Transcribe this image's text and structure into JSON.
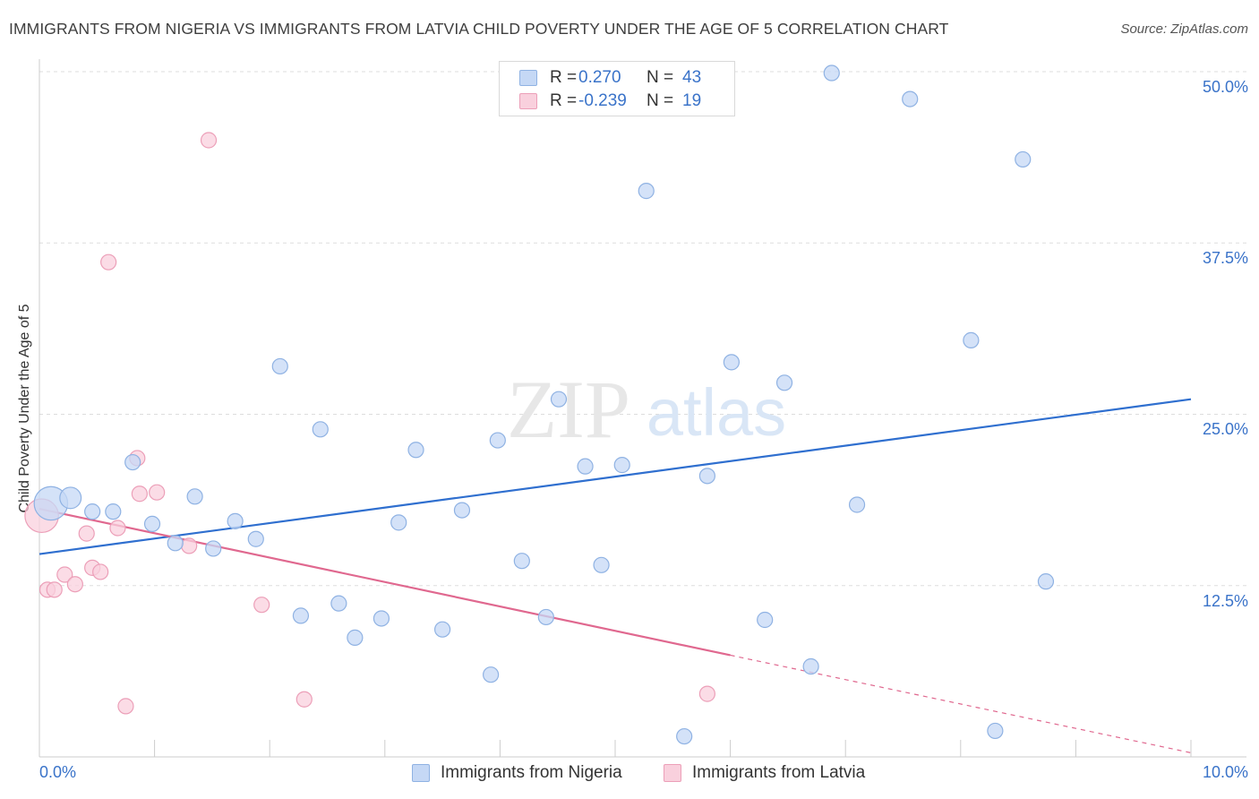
{
  "title": "IMMIGRANTS FROM NIGERIA VS IMMIGRANTS FROM LATVIA CHILD POVERTY UNDER THE AGE OF 5 CORRELATION CHART",
  "source": "Source: ZipAtlas.com",
  "watermark": {
    "zip": "ZIP",
    "atlas": "atlas"
  },
  "legend": {
    "rows": [
      {
        "r_label": "R =",
        "r_value": "0.270",
        "n_label": "N =",
        "n_value": "43"
      },
      {
        "r_label": "R =",
        "r_value": "-0.239",
        "n_label": "N =",
        "n_value": "19"
      }
    ]
  },
  "colors": {
    "nigeria_fill": "#c5d8f5",
    "nigeria_stroke": "#8fb2e3",
    "nigeria_line": "#2f6fcf",
    "latvia_fill": "#f9d0dd",
    "latvia_stroke": "#ec9fb8",
    "latvia_line": "#e0688f",
    "tick_text": "#3a73c9",
    "grid": "#dddddd"
  },
  "chart_data": {
    "type": "scatter",
    "xlabel": "",
    "ylabel": "Child Poverty Under the Age of 5",
    "xlim": [
      0,
      10
    ],
    "ylim": [
      0,
      50
    ],
    "x_tick_labels": [
      "0.0%",
      "10.0%"
    ],
    "y_ticks": [
      12.5,
      25.0,
      37.5,
      50.0
    ],
    "y_tick_labels": [
      "12.5%",
      "25.0%",
      "37.5%",
      "50.0%"
    ],
    "grid": true,
    "legend_position": "bottom-center",
    "series": [
      {
        "name": "Immigrants from Nigeria",
        "color": "#8fb2e3",
        "points": [
          [
            0.1,
            18.5,
            2.2
          ],
          [
            0.27,
            18.9,
            1.4
          ],
          [
            0.46,
            17.9,
            1
          ],
          [
            0.64,
            17.9,
            1
          ],
          [
            0.81,
            21.5,
            1
          ],
          [
            0.98,
            17.0,
            1
          ],
          [
            1.18,
            15.6,
            1
          ],
          [
            1.35,
            19.0,
            1
          ],
          [
            1.51,
            15.2,
            1
          ],
          [
            1.7,
            17.2,
            1
          ],
          [
            1.88,
            15.9,
            1
          ],
          [
            2.09,
            28.5,
            1
          ],
          [
            2.27,
            10.3,
            1
          ],
          [
            2.44,
            23.9,
            1
          ],
          [
            2.6,
            11.2,
            1
          ],
          [
            2.74,
            8.7,
            1
          ],
          [
            2.97,
            10.1,
            1
          ],
          [
            3.12,
            17.1,
            1
          ],
          [
            3.27,
            22.4,
            1
          ],
          [
            3.5,
            9.3,
            1
          ],
          [
            3.67,
            18.0,
            1
          ],
          [
            3.92,
            6.0,
            1
          ],
          [
            3.98,
            23.1,
            1
          ],
          [
            4.19,
            14.3,
            1
          ],
          [
            4.4,
            10.2,
            1
          ],
          [
            4.51,
            26.1,
            1
          ],
          [
            4.74,
            21.2,
            1
          ],
          [
            4.88,
            14.0,
            1
          ],
          [
            5.06,
            21.3,
            1
          ],
          [
            5.27,
            41.3,
            1
          ],
          [
            5.6,
            1.5,
            1
          ],
          [
            5.8,
            20.5,
            1
          ],
          [
            6.01,
            28.8,
            1
          ],
          [
            6.3,
            10.0,
            1
          ],
          [
            6.47,
            27.3,
            1
          ],
          [
            6.7,
            6.6,
            1
          ],
          [
            6.88,
            49.9,
            1
          ],
          [
            7.1,
            18.4,
            1
          ],
          [
            7.56,
            48.0,
            1
          ],
          [
            8.09,
            30.4,
            1
          ],
          [
            8.3,
            1.9,
            1
          ],
          [
            8.54,
            43.6,
            1
          ],
          [
            8.74,
            12.8,
            1
          ]
        ],
        "trend": {
          "x": [
            0,
            10
          ],
          "y": [
            14.8,
            26.1
          ],
          "solid_until": 10
        }
      },
      {
        "name": "Immigrants from Latvia",
        "color": "#ec9fb8",
        "points": [
          [
            0.02,
            17.6,
            2.2
          ],
          [
            0.07,
            12.2,
            1
          ],
          [
            0.13,
            12.2,
            1
          ],
          [
            0.22,
            13.3,
            1
          ],
          [
            0.31,
            12.6,
            1
          ],
          [
            0.41,
            16.3,
            1
          ],
          [
            0.46,
            13.8,
            1
          ],
          [
            0.53,
            13.5,
            1
          ],
          [
            0.6,
            36.1,
            1
          ],
          [
            0.68,
            16.7,
            1
          ],
          [
            0.75,
            3.7,
            1
          ],
          [
            0.85,
            21.8,
            1
          ],
          [
            0.87,
            19.2,
            1
          ],
          [
            1.02,
            19.3,
            1
          ],
          [
            1.3,
            15.4,
            1
          ],
          [
            1.47,
            45.0,
            1
          ],
          [
            1.93,
            11.1,
            1
          ],
          [
            2.3,
            4.2,
            1
          ],
          [
            5.8,
            4.6,
            1
          ]
        ],
        "trend": {
          "x": [
            0,
            10
          ],
          "y": [
            18.1,
            0.3
          ],
          "solid_until": 6.0
        }
      }
    ]
  }
}
